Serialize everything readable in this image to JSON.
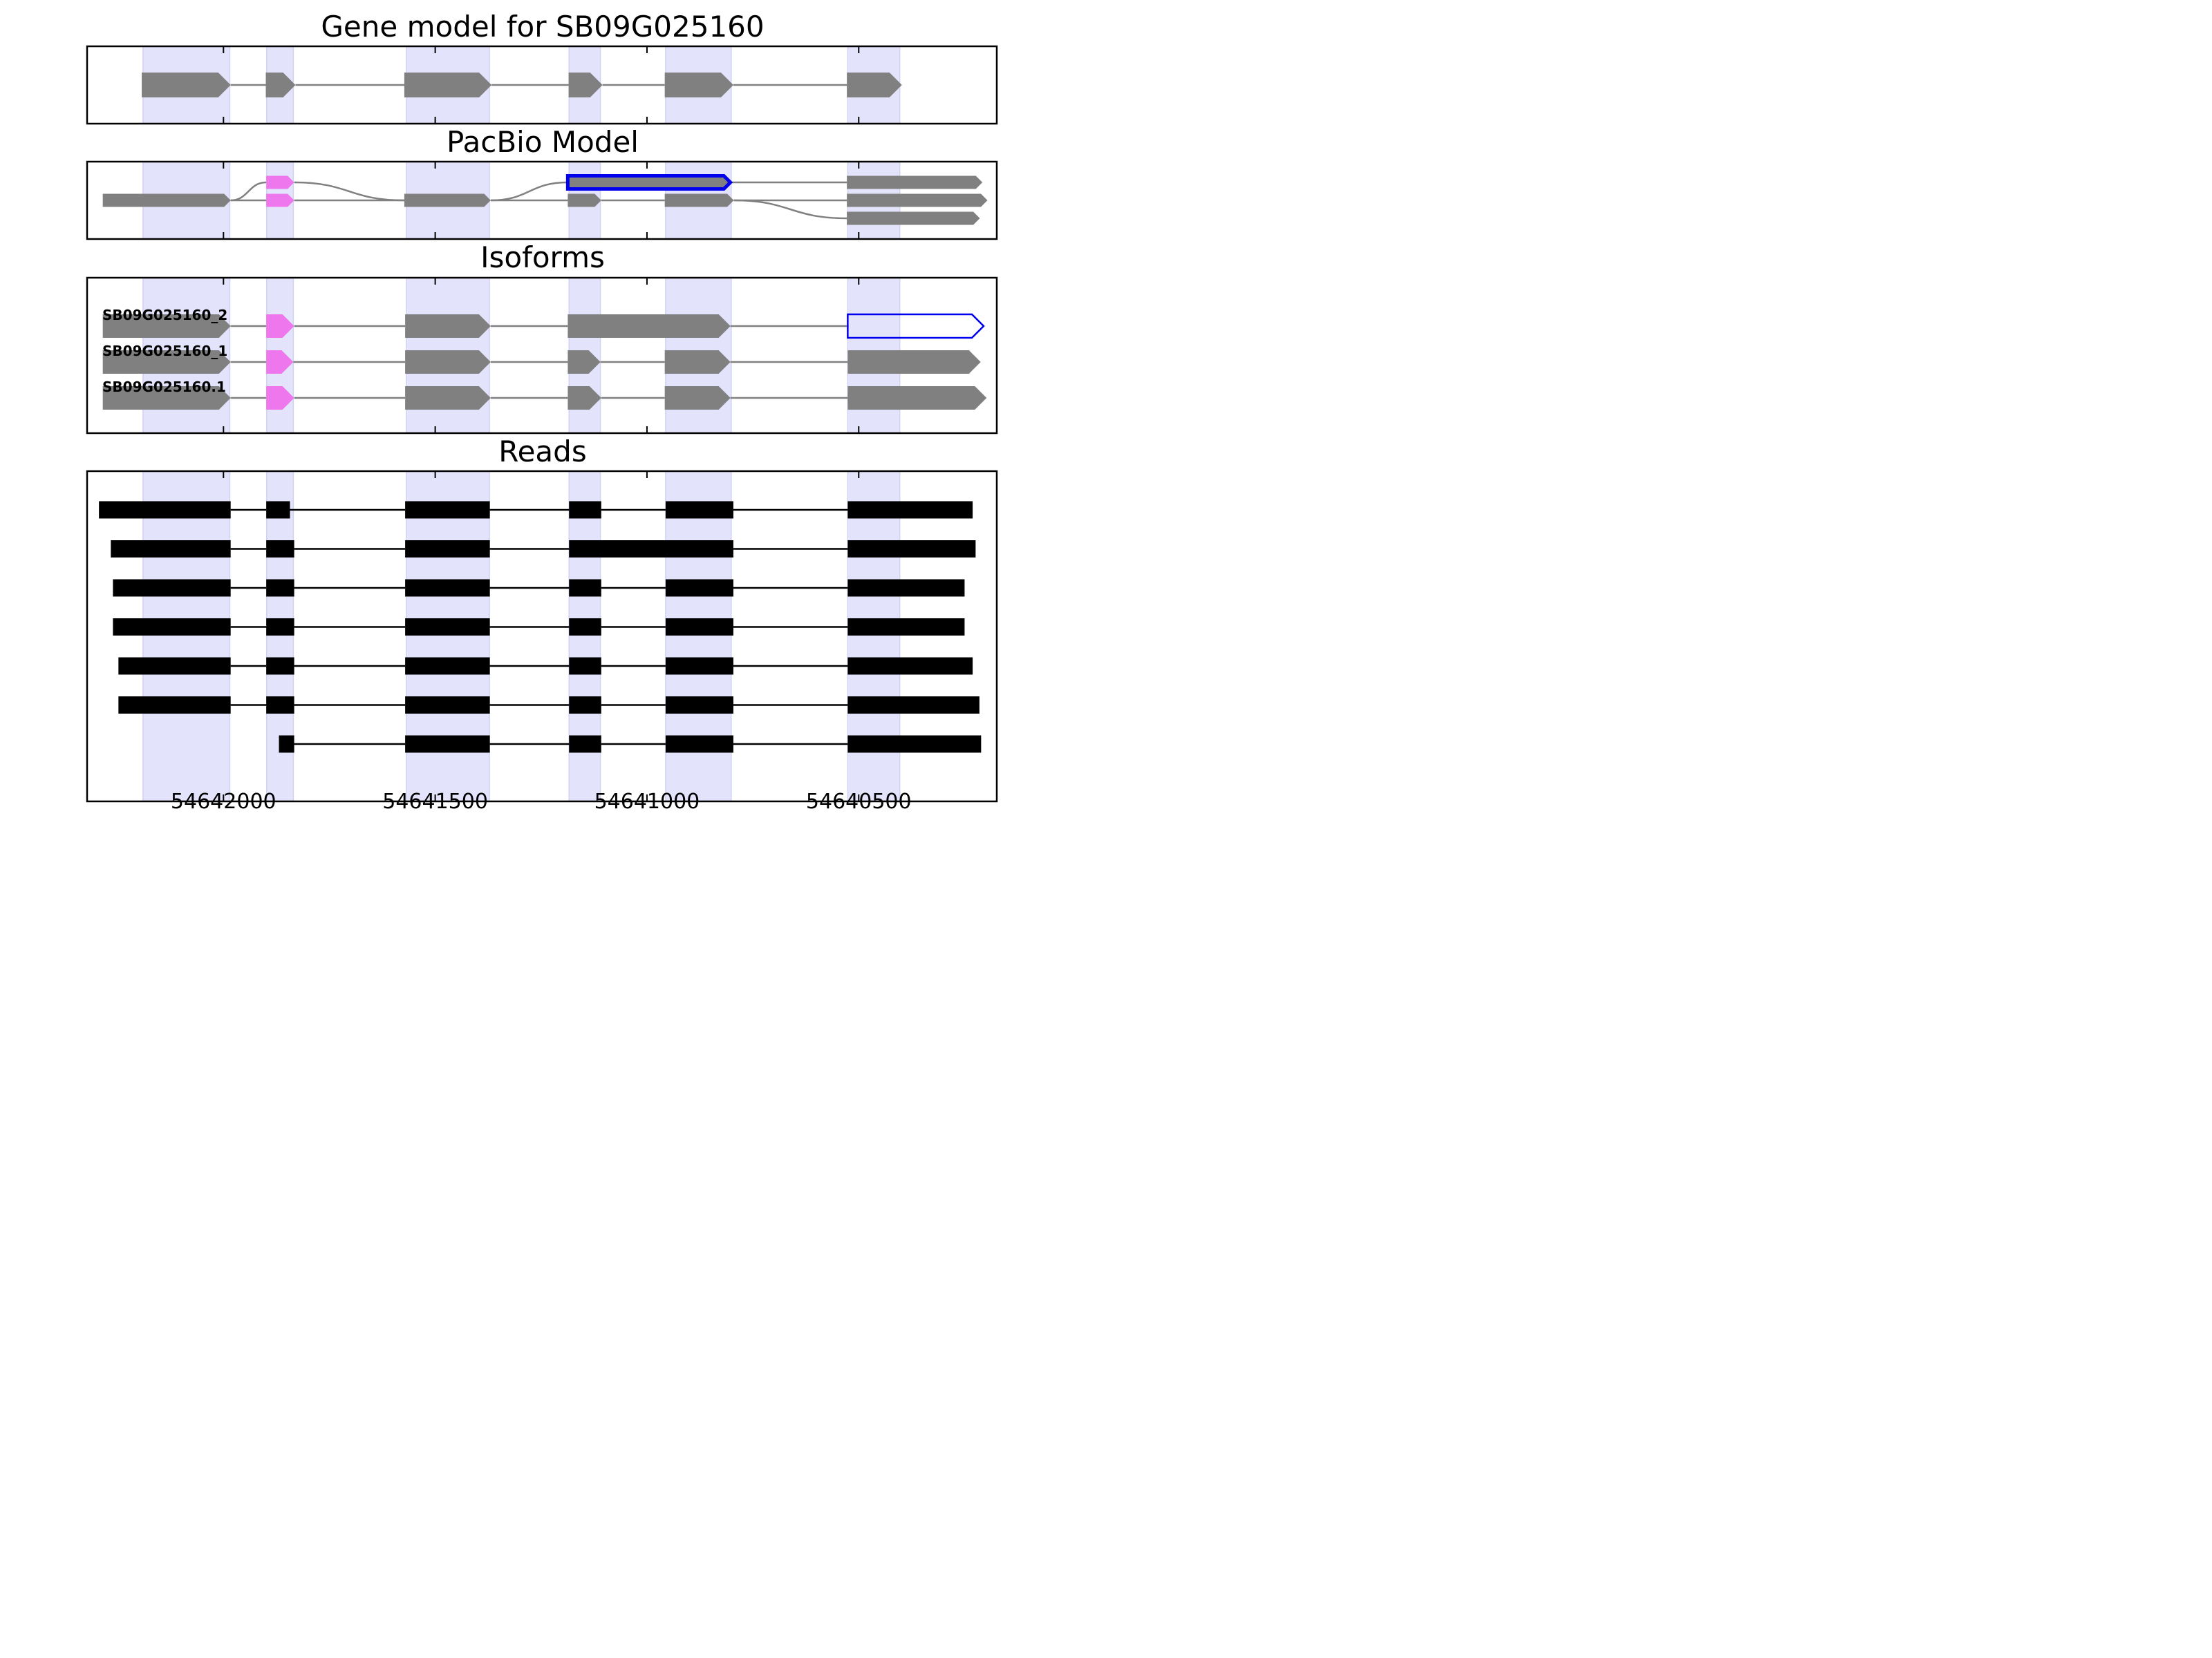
{
  "chart_data": {
    "type": "gene-structure",
    "title": "Gene model for SB09G025160",
    "xticks": [
      54642000,
      54641500,
      54641000,
      54640500
    ],
    "xlim": [
      54642322,
      54640174
    ],
    "shaded_exon_regions": [
      [
        54642190,
        54641985
      ],
      [
        54641898,
        54641835
      ],
      [
        54641568,
        54641372
      ],
      [
        54641184,
        54641110
      ],
      [
        54640956,
        54640801
      ],
      [
        54640526,
        54640403
      ]
    ],
    "panels": [
      {
        "title": "Gene model for SB09G025160",
        "tracks": [
          {
            "exons": [
              [
                54642193,
                54641983
              ],
              [
                54641900,
                54641830
              ],
              [
                54641573,
                54641367
              ],
              [
                54641185,
                54641105
              ],
              [
                54640958,
                54640796
              ],
              [
                54640528,
                54640398
              ]
            ],
            "fill": "#808080"
          }
        ]
      },
      {
        "title": "PacBio Model",
        "nodes": [
          {
            "start": 54642285,
            "end": 54641983,
            "row": 1,
            "fill": "#808080"
          },
          {
            "start": 54641899,
            "end": 54641833,
            "row": 0,
            "fill": "#ee77ee"
          },
          {
            "start": 54641899,
            "end": 54641833,
            "row": 1,
            "fill": "#ee77ee"
          },
          {
            "start": 54641573,
            "end": 54641369,
            "row": 1,
            "fill": "#808080"
          },
          {
            "start": 54641187,
            "end": 54640803,
            "row": 0,
            "fill": "#808080",
            "highlight": true
          },
          {
            "start": 54641187,
            "end": 54641108,
            "row": 1,
            "fill": "#808080"
          },
          {
            "start": 54640958,
            "end": 54640795,
            "row": 1,
            "fill": "#808080"
          },
          {
            "start": 54640528,
            "end": 54640208,
            "row": 0,
            "fill": "#808080"
          },
          {
            "start": 54640528,
            "end": 54640196,
            "row": 1,
            "fill": "#808080"
          },
          {
            "start": 54640528,
            "end": 54640214,
            "row": 2,
            "fill": "#808080"
          }
        ],
        "edges": [
          [
            0,
            1
          ],
          [
            0,
            2
          ],
          [
            1,
            3
          ],
          [
            2,
            3
          ],
          [
            3,
            4
          ],
          [
            3,
            5
          ],
          [
            5,
            6
          ],
          [
            4,
            7
          ],
          [
            6,
            8
          ],
          [
            6,
            9
          ]
        ]
      },
      {
        "title": "Isoforms",
        "isoforms": [
          {
            "name": "SB09G025160_2",
            "first_exon": [
              54642285,
              54641983
            ],
            "exons": [
              [
                54641899,
                54641833
              ],
              [
                54641571,
                54641369
              ],
              [
                54641187,
                54640803
              ],
              [
                54640526,
                54640205
              ]
            ],
            "highlight_exon": 3
          },
          {
            "name": "SB09G025160_1",
            "first_exon": [
              54642285,
              54641983
            ],
            "exons": [
              [
                54641899,
                54641835
              ],
              [
                54641571,
                54641369
              ],
              [
                54641187,
                54641110
              ],
              [
                54640958,
                54640803
              ],
              [
                54640526,
                54640212
              ]
            ]
          },
          {
            "name": "SB09G025160.1",
            "first_exon": [
              54642285,
              54641983
            ],
            "exons": [
              [
                54641899,
                54641833
              ],
              [
                54641571,
                54641369
              ],
              [
                54641187,
                54641108
              ],
              [
                54640958,
                54640803
              ],
              [
                54640526,
                54640198
              ]
            ]
          }
        ]
      },
      {
        "title": "Reads",
        "reads": [
          [
            [
              54642294,
              54641983
            ],
            [
              54641899,
              54641843
            ],
            [
              54641571,
              54641371
            ],
            [
              54641184,
              54641108
            ],
            [
              54640956,
              54640796
            ],
            [
              54640526,
              54640231
            ]
          ],
          [
            [
              54642266,
              54641983
            ],
            [
              54641899,
              54641833
            ],
            [
              54641571,
              54641371
            ],
            [
              54641184,
              54640796
            ],
            [
              54640526,
              54640224
            ]
          ],
          [
            [
              54642261,
              54641983
            ],
            [
              54641899,
              54641833
            ],
            [
              54641571,
              54641371
            ],
            [
              54641184,
              54641108
            ],
            [
              54640956,
              54640796
            ],
            [
              54640526,
              54640250
            ]
          ],
          [
            [
              54642261,
              54641983
            ],
            [
              54641899,
              54641833
            ],
            [
              54641571,
              54641371
            ],
            [
              54641184,
              54641108
            ],
            [
              54640956,
              54640796
            ],
            [
              54640526,
              54640250
            ]
          ],
          [
            [
              54642248,
              54641983
            ],
            [
              54641899,
              54641833
            ],
            [
              54641571,
              54641371
            ],
            [
              54641184,
              54641108
            ],
            [
              54640956,
              54640796
            ],
            [
              54640526,
              54640231
            ]
          ],
          [
            [
              54642248,
              54641983
            ],
            [
              54641899,
              54641833
            ],
            [
              54641571,
              54641371
            ],
            [
              54641184,
              54641108
            ],
            [
              54640956,
              54640796
            ],
            [
              54640526,
              54640215
            ]
          ],
          [
            [
              54641869,
              54641833
            ],
            [
              54641571,
              54641371
            ],
            [
              54641184,
              54641108
            ],
            [
              54640956,
              54640796
            ],
            [
              54640526,
              54640211
            ]
          ]
        ]
      }
    ],
    "colors": {
      "exon": "#808080",
      "utr_exon": "#ee77ee",
      "highlight_outline": "#0000ee",
      "shade": "#e3e3fb",
      "shade_edge": "#d2d2f2",
      "intron": "#808080",
      "read": "#000000"
    }
  }
}
